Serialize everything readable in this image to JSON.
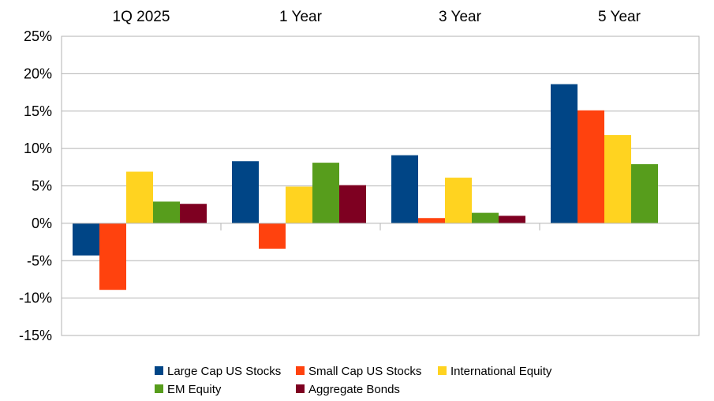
{
  "chart_data": {
    "type": "bar",
    "title": "",
    "xlabel": "",
    "ylabel": "",
    "categories": [
      "1Q 2025",
      "1 Year",
      "3 Year",
      "5 Year"
    ],
    "ylim": [
      -15,
      25
    ],
    "ytick_values": [
      25,
      20,
      15,
      10,
      5,
      0,
      -5,
      -10,
      -15
    ],
    "ytick_labels": [
      "25%",
      "20%",
      "15%",
      "10%",
      "5%",
      "0%",
      "-5%",
      "-10%",
      "-15%"
    ],
    "grid": true,
    "category_labels_position": "top",
    "legend_position": "bottom",
    "series": [
      {
        "name": "Large Cap US Stocks",
        "color": "#004586",
        "values": [
          -4.3,
          8.3,
          9.1,
          18.6
        ]
      },
      {
        "name": "Small Cap US Stocks",
        "color": "#FF420E",
        "values": [
          -8.9,
          -3.4,
          0.7,
          15.1
        ]
      },
      {
        "name": "International Equity",
        "color": "#FFD320",
        "values": [
          6.9,
          4.9,
          6.1,
          11.8
        ]
      },
      {
        "name": "EM Equity",
        "color": "#579D1C",
        "values": [
          2.9,
          8.1,
          1.4,
          7.9
        ]
      },
      {
        "name": "Aggregate Bonds",
        "color": "#7E0021",
        "values": [
          2.6,
          5.1,
          1.0,
          0.0
        ]
      }
    ]
  }
}
